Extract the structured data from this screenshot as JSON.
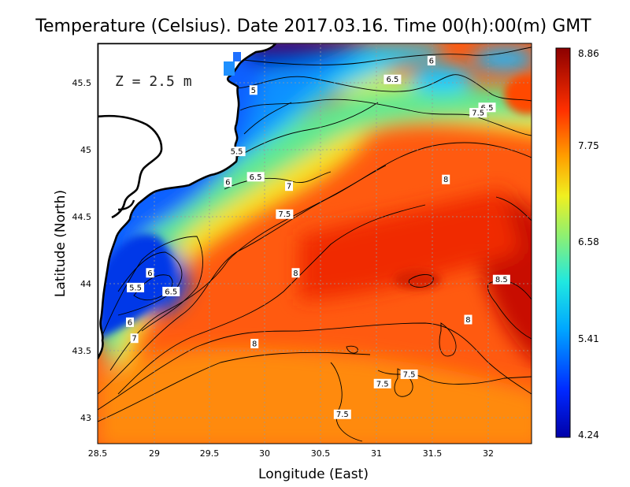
{
  "title": "Temperature (Celsius). Date 2017.03.16. Time 00(h):00(m)  GMT",
  "depth_label": "Z  =  2.5  m",
  "axes": {
    "xlabel": "Longitude (East)",
    "ylabel": "Latitude (North)",
    "x_ticks": [
      "28.5",
      "29",
      "29.5",
      "30",
      "30.5",
      "31",
      "31.5",
      "32"
    ],
    "y_ticks": [
      "45.5",
      "45",
      "44.5",
      "44",
      "43.5",
      "43"
    ],
    "xlim": [
      28.5,
      32.4
    ],
    "ylim": [
      42.8,
      45.8
    ]
  },
  "colorbar": {
    "ticks": [
      "8.86",
      "7.75",
      "6.58",
      "5.41",
      "4.24"
    ],
    "min": 4.24,
    "max": 8.86
  },
  "contour_labels": [
    {
      "text": "6",
      "lon": 31.5,
      "lat": 45.67
    },
    {
      "text": "6.5",
      "lon": 31.15,
      "lat": 45.53
    },
    {
      "text": "6.5",
      "lon": 32.0,
      "lat": 45.32
    },
    {
      "text": "7.5",
      "lon": 31.92,
      "lat": 45.28
    },
    {
      "text": "5",
      "lon": 29.9,
      "lat": 45.45
    },
    {
      "text": "5.5",
      "lon": 29.75,
      "lat": 44.99
    },
    {
      "text": "6",
      "lon": 29.67,
      "lat": 44.76
    },
    {
      "text": "6.5",
      "lon": 29.92,
      "lat": 44.8
    },
    {
      "text": "7",
      "lon": 30.22,
      "lat": 44.73
    },
    {
      "text": "7.5",
      "lon": 30.18,
      "lat": 44.52
    },
    {
      "text": "8",
      "lon": 31.63,
      "lat": 44.78
    },
    {
      "text": "8",
      "lon": 30.28,
      "lat": 44.08
    },
    {
      "text": "8.5",
      "lon": 32.13,
      "lat": 44.03
    },
    {
      "text": "6",
      "lon": 28.97,
      "lat": 44.08
    },
    {
      "text": "5.5",
      "lon": 28.84,
      "lat": 43.97
    },
    {
      "text": "6.5",
      "lon": 29.16,
      "lat": 43.94
    },
    {
      "text": "6",
      "lon": 28.79,
      "lat": 43.71
    },
    {
      "text": "7",
      "lon": 28.83,
      "lat": 43.59
    },
    {
      "text": "8",
      "lon": 29.91,
      "lat": 43.55
    },
    {
      "text": "8",
      "lon": 31.83,
      "lat": 43.73
    },
    {
      "text": "7.5",
      "lon": 31.3,
      "lat": 43.32
    },
    {
      "text": "7.5",
      "lon": 31.06,
      "lat": 43.25
    },
    {
      "text": "7.5",
      "lon": 30.7,
      "lat": 43.02
    }
  ]
}
